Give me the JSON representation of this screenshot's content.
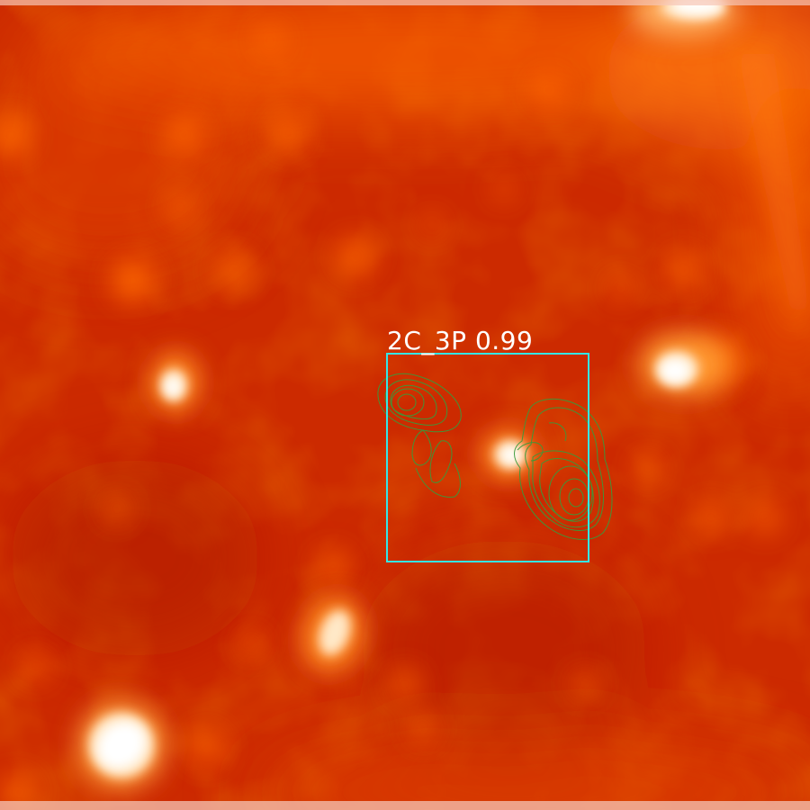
{
  "image": {
    "colormap": "hot",
    "background_color": "#cc2a00",
    "contour_color": "#3a9a3a",
    "box_color": "#33e6e6"
  },
  "detection": {
    "label": "2C_3P 0.99"
  }
}
